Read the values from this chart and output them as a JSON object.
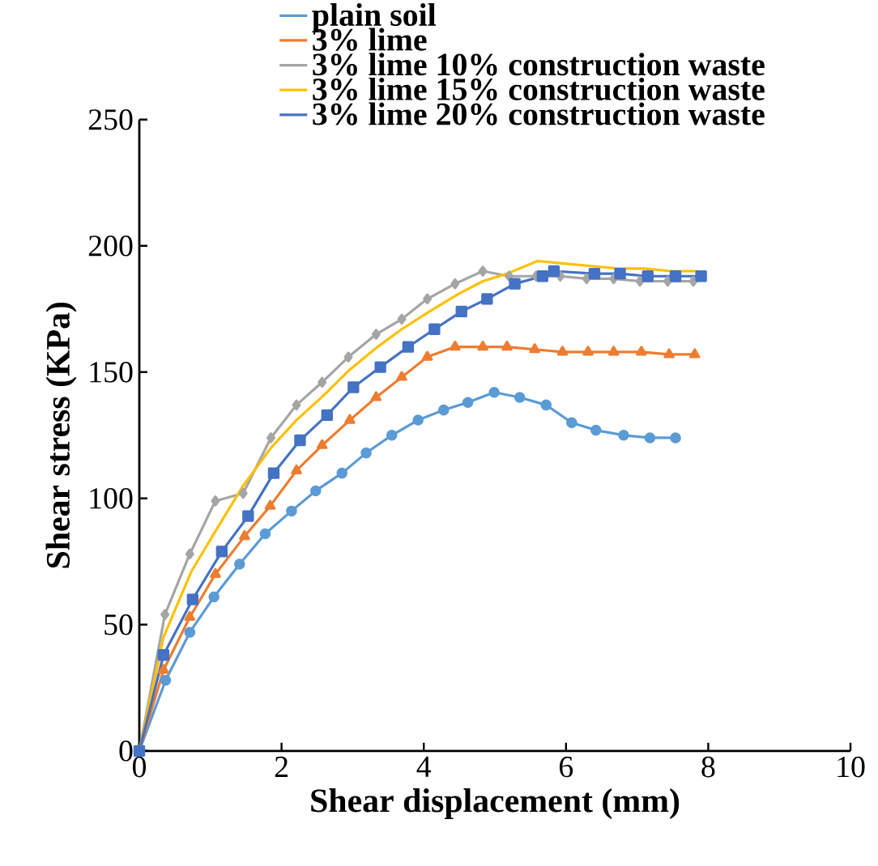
{
  "chart_data": {
    "type": "line",
    "xlabel": "Shear displacement (mm)",
    "ylabel": "Shear stress (KPa)",
    "xlim": [
      0,
      10
    ],
    "xticks": [
      0,
      2,
      4,
      6,
      8,
      10
    ],
    "ylim": [
      0,
      250
    ],
    "yticks": [
      0,
      50,
      100,
      150,
      200,
      250
    ],
    "grid": false,
    "legend": "top",
    "line_style": "solid",
    "series": [
      {
        "name": "plain soil",
        "color": "#5b9bd5",
        "marker": "circle",
        "x": [
          0,
          0.37,
          0.71,
          1.05,
          1.41,
          1.77,
          2.14,
          2.48,
          2.85,
          3.19,
          3.55,
          3.92,
          4.28,
          4.62,
          4.99,
          5.35,
          5.72,
          6.08,
          6.42,
          6.81,
          7.18,
          7.54
        ],
        "values": [
          0,
          28,
          47,
          61,
          74,
          86,
          95,
          103,
          110,
          118,
          125,
          131,
          135,
          138,
          142,
          140,
          137,
          130,
          127,
          125,
          124,
          124
        ]
      },
      {
        "name": "3% lime",
        "color": "#ed7d31",
        "marker": "triangle",
        "x": [
          0,
          0.34,
          0.71,
          1.07,
          1.48,
          1.84,
          2.21,
          2.57,
          2.96,
          3.33,
          3.69,
          4.05,
          4.44,
          4.83,
          5.17,
          5.56,
          5.95,
          6.31,
          6.67,
          7.06,
          7.45,
          7.81
        ],
        "values": [
          0,
          32,
          53,
          70,
          85,
          97,
          111,
          121,
          131,
          140,
          148,
          156,
          160,
          160,
          160,
          159,
          158,
          158,
          158,
          158,
          157,
          157
        ]
      },
      {
        "name": "3% lime 10% construction waste",
        "color": "#a5a5a5",
        "marker": "diamond",
        "x": [
          0,
          0.36,
          0.71,
          1.07,
          1.46,
          1.85,
          2.21,
          2.57,
          2.94,
          3.33,
          3.69,
          4.05,
          4.44,
          4.83,
          5.2,
          5.58,
          5.92,
          6.29,
          6.67,
          7.04,
          7.43,
          7.79
        ],
        "values": [
          0,
          54,
          78,
          99,
          102,
          124,
          137,
          146,
          156,
          165,
          171,
          179,
          185,
          190,
          188,
          188,
          188,
          187,
          187,
          186,
          186,
          186
        ]
      },
      {
        "name": "3% lime 15% construction waste",
        "color": "#ffc000",
        "marker": "none",
        "x": [
          0,
          0.34,
          0.73,
          1.07,
          1.46,
          1.85,
          2.21,
          2.6,
          2.96,
          3.35,
          3.69,
          4.08,
          4.49,
          4.83,
          5.17,
          5.6,
          5.97,
          6.36,
          6.74,
          7.11,
          7.47,
          7.85
        ],
        "values": [
          0,
          45,
          71,
          87,
          105,
          120,
          131,
          141,
          151,
          160,
          167,
          174,
          181,
          186,
          189,
          194,
          193,
          192,
          191,
          191,
          190,
          190
        ]
      },
      {
        "name": "3% lime 20% construction waste",
        "color": "#4472c4",
        "marker": "square",
        "x": [
          0,
          0.34,
          0.75,
          1.16,
          1.53,
          1.89,
          2.26,
          2.64,
          3.01,
          3.39,
          3.78,
          4.15,
          4.53,
          4.89,
          5.28,
          5.67,
          5.83,
          6.4,
          6.76,
          7.15,
          7.54,
          7.9
        ],
        "values": [
          0,
          38,
          60,
          79,
          93,
          110,
          123,
          133,
          144,
          152,
          160,
          167,
          174,
          179,
          185,
          188,
          190,
          189,
          189,
          188,
          188,
          188
        ]
      }
    ]
  }
}
